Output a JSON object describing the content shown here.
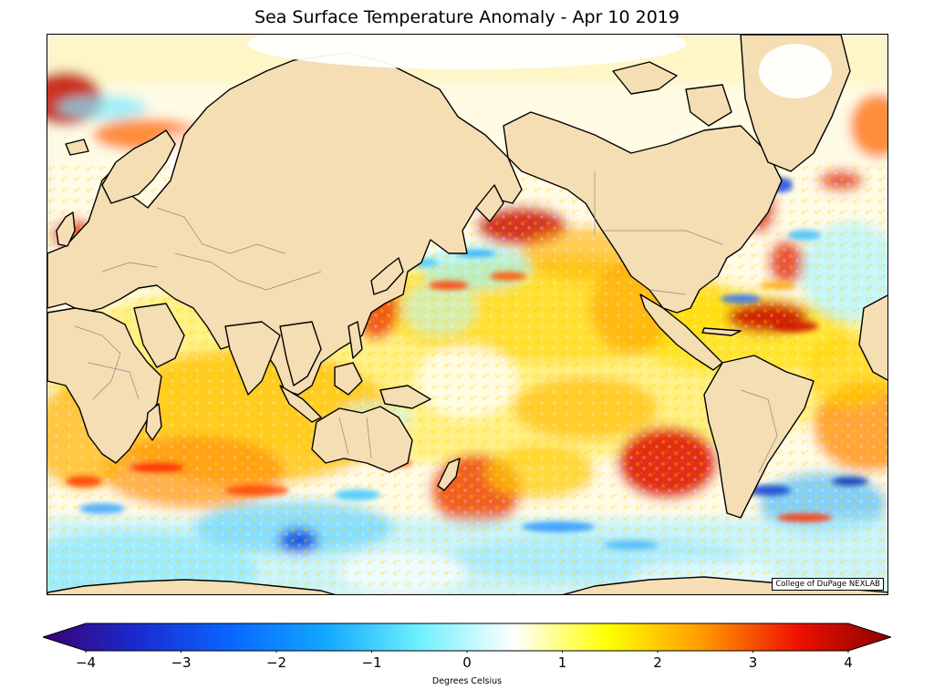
{
  "title": "Sea Surface Temperature Anomaly - Apr 10 2019",
  "credit": "College of DuPage NEXLAB",
  "colorbar": {
    "label": "Degrees Celsius",
    "min": -4,
    "max": 4,
    "ticks": [
      "−4",
      "−3",
      "−2",
      "−1",
      "0",
      "1",
      "2",
      "3",
      "4"
    ],
    "tick_values": [
      -4,
      -3,
      -2,
      -1,
      0,
      1,
      2,
      3,
      4
    ],
    "colormap": [
      "#3a0070",
      "#1a2bd0",
      "#0a66ff",
      "#12a8ff",
      "#6ff0ff",
      "#ffffff",
      "#ffff00",
      "#ff9900",
      "#ee1100",
      "#8b0000"
    ]
  },
  "colors": {
    "land": "#f5deb3",
    "ice": "#ffffff",
    "coast": "#000000",
    "border": "#777777"
  }
}
